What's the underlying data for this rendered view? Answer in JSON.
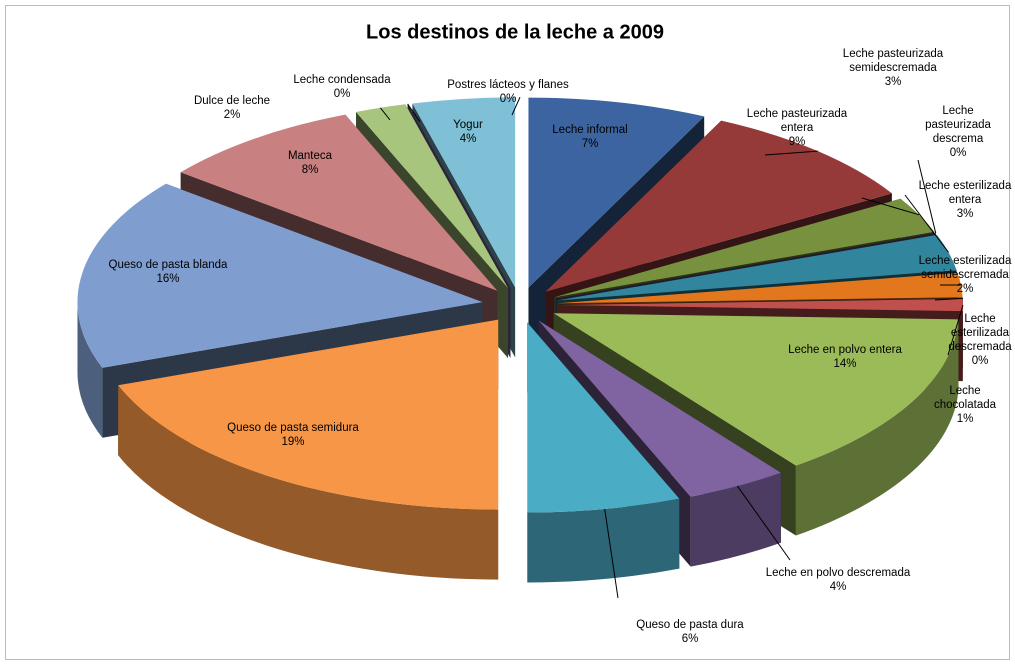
{
  "chart_data": {
    "type": "pie3d",
    "title": "Los destinos de la leche a 2009",
    "categories": [
      "Leche informal",
      "Leche pasteurizada entera",
      "Leche pasteurizada semidescremada",
      "Leche pasteurizada descrema",
      "Leche esterilizada entera",
      "Leche esterilizada semidescremada",
      "Leche esterilizada descremada",
      "Leche chocolatada",
      "Leche en polvo entera",
      "Leche en polvo descremada",
      "Queso de pasta dura",
      "Queso de pasta semidura",
      "Queso de pasta blanda",
      "Manteca",
      "Dulce de leche",
      "Leche condensada",
      "Yogur",
      "Postres lácteos y flanes"
    ],
    "values": [
      7,
      9,
      3,
      0,
      3,
      2,
      0,
      1,
      14,
      4,
      6,
      19,
      16,
      8,
      2,
      0,
      4,
      0
    ],
    "value_labels": [
      "7%",
      "9%",
      "3%",
      "0%",
      "3%",
      "2%",
      "0%",
      "1%",
      "14%",
      "4%",
      "6%",
      "19%",
      "16%",
      "8%",
      "2%",
      "0%",
      "4%",
      "0%"
    ],
    "colors": [
      "#3b64a0",
      "#953a38",
      "#77913f",
      "#5f497a",
      "#31859c",
      "#e2771e",
      "#4f6228",
      "#c0504d",
      "#9bbb59",
      "#8064a2",
      "#4bacc6",
      "#f79646",
      "#7f9ecf",
      "#c98080",
      "#a7c57d",
      "#8064a2",
      "#7fc0d6",
      "#f9a870"
    ]
  }
}
